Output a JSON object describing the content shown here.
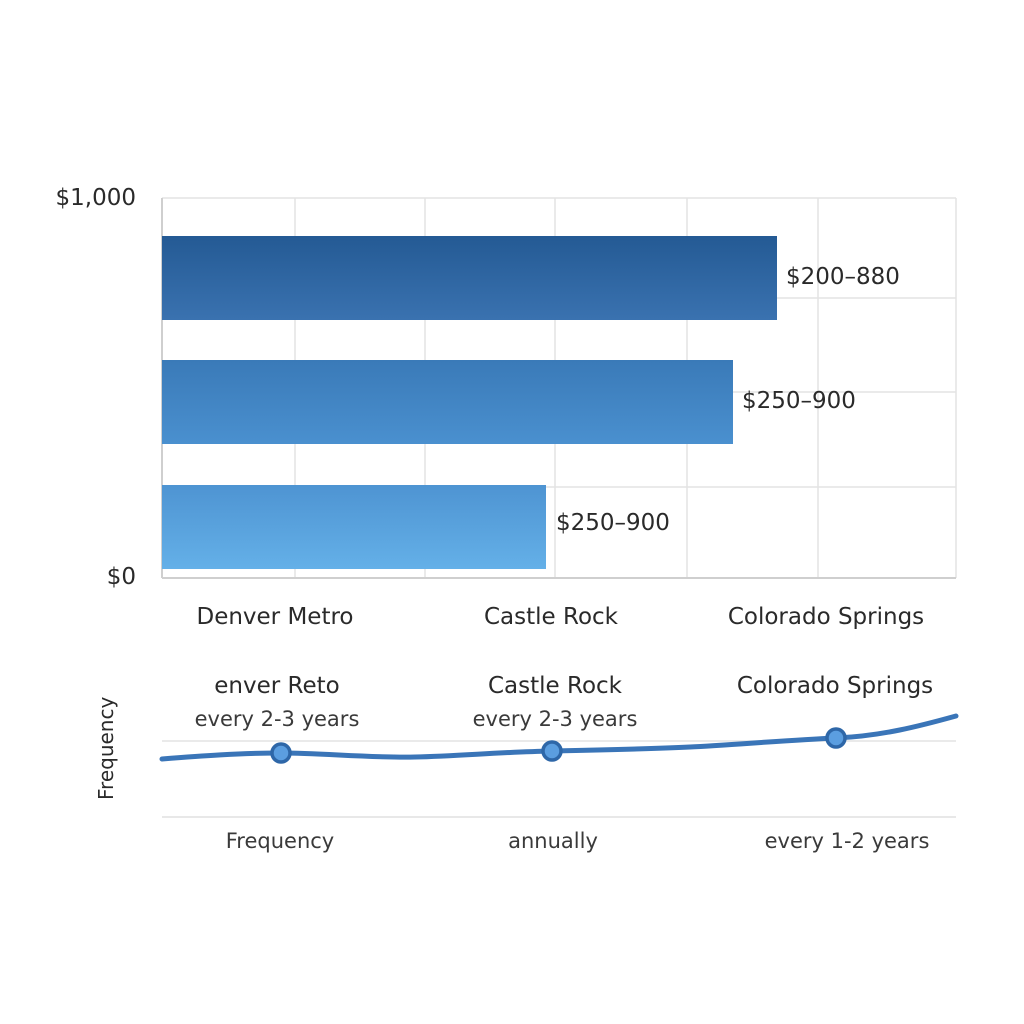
{
  "chart_data": [
    {
      "type": "bar",
      "orientation": "horizontal",
      "categories": [
        "Denver Metro",
        "Castle Rock",
        "Colorado Springs"
      ],
      "values": [
        880,
        900,
        900
      ],
      "value_labels": [
        "$200–880",
        "$250–900",
        "$250–900"
      ],
      "y_ticks": [
        "$1,000",
        "$0"
      ],
      "axis_range": [
        0,
        1000
      ],
      "grid": true,
      "colors": [
        "#2a63a0",
        "#3f86c6",
        "#5aa6e2"
      ]
    },
    {
      "type": "line",
      "ylabel": "Frequency",
      "points": [
        {
          "title": "enver Reto",
          "subtitle": "every 2-3 years",
          "bottom": "Frequency",
          "value": 0.42
        },
        {
          "title": "Castle Rock",
          "subtitle": "every 2-3 years",
          "bottom": "annually",
          "value": 0.45
        },
        {
          "title": "Colorado Springs",
          "subtitle": "",
          "bottom": "every 1-2 years",
          "value": 0.62
        }
      ],
      "line_color": "#3a75b8",
      "grid": true
    }
  ]
}
